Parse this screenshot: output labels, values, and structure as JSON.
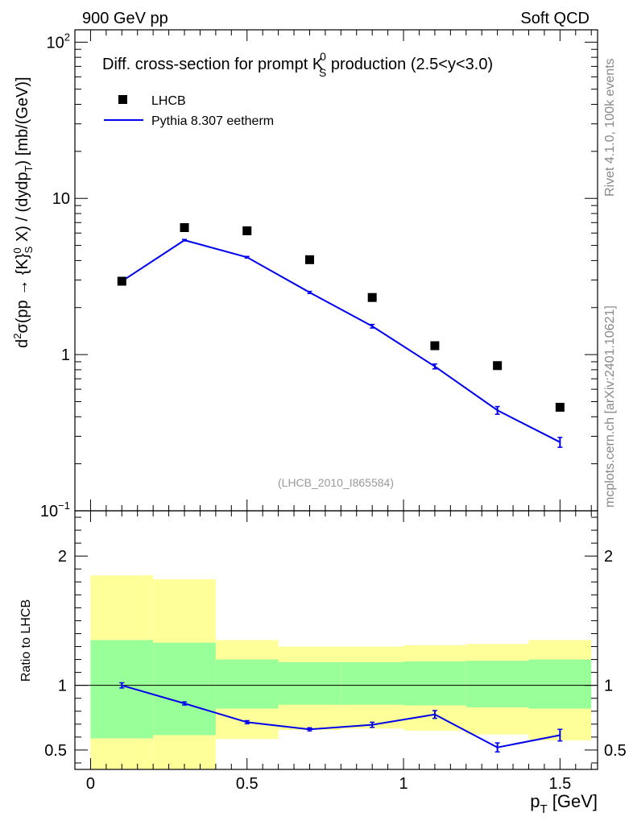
{
  "header": {
    "left_title": "900 GeV pp",
    "right_title": "Soft QCD"
  },
  "side": {
    "rivet_label": "Rivet 4.1.0,  100k events",
    "source_label": "mcplots.cern.ch [arXiv:2401.10621]"
  },
  "chart_data": {
    "type": "scatter",
    "title": "Diff. cross-section for prompt K0S production (2.5<y<3.0)",
    "title_parts": {
      "prefix": "Diff. cross-section for prompt K",
      "sup": "0",
      "sub": "S",
      "suffix": " production (2.5<y<3.0)"
    },
    "analysis_id": "(LHCB_2010_I865584)",
    "xlabel": "pT [GeV]",
    "ylabel": "d2σ(pp → {K}0S X) / (dydpT) [mb/(GeV)]",
    "xlim": [
      -0.05,
      1.62
    ],
    "ylim": [
      0.1,
      120
    ],
    "yscale": "log",
    "x_ticks": [
      "0",
      "0.5",
      "1",
      "1.5"
    ],
    "y_tick_values": [
      0.1,
      1,
      10,
      100
    ],
    "legend": [
      "LHCB",
      "Pythia 8.307 eetherm"
    ],
    "legend_position": "top-left",
    "x": [
      0.1,
      0.3,
      0.5,
      0.7,
      0.9,
      1.1,
      1.3,
      1.5
    ],
    "series": [
      {
        "name": "LHCB",
        "style": "markers",
        "color": "#000000",
        "values": [
          2.95,
          6.5,
          6.2,
          4.05,
          2.32,
          1.14,
          0.85,
          0.46
        ]
      },
      {
        "name": "Pythia 8.307 eetherm",
        "style": "line",
        "color": "#0000ee",
        "values": [
          2.95,
          5.4,
          4.2,
          2.5,
          1.52,
          0.84,
          0.44,
          0.275
        ],
        "errors": [
          0.04,
          0.06,
          0.05,
          0.04,
          0.04,
          0.03,
          0.025,
          0.02
        ]
      }
    ],
    "ratio": {
      "ylabel": "Ratio to LHCB",
      "ylim": [
        0.35,
        2.35
      ],
      "y_ticks": [
        "0.5",
        "1",
        "2"
      ],
      "y_tick_values": [
        0.5,
        1,
        2
      ],
      "values": [
        1.0,
        0.86,
        0.715,
        0.66,
        0.695,
        0.775,
        0.52,
        0.615
      ],
      "errors": [
        0.02,
        0.012,
        0.012,
        0.012,
        0.02,
        0.03,
        0.035,
        0.045
      ],
      "bands": [
        {
          "x0": 0.0,
          "x1": 0.2,
          "g_lo": 0.59,
          "g_hi": 1.35,
          "y_lo": 0.35,
          "y_hi": 1.85
        },
        {
          "x0": 0.2,
          "x1": 0.4,
          "g_lo": 0.615,
          "g_hi": 1.33,
          "y_lo": 0.35,
          "y_hi": 1.82
        },
        {
          "x0": 0.4,
          "x1": 0.6,
          "g_lo": 0.82,
          "g_hi": 1.2,
          "y_lo": 0.585,
          "y_hi": 1.35
        },
        {
          "x0": 0.6,
          "x1": 0.8,
          "g_lo": 0.85,
          "g_hi": 1.18,
          "y_lo": 0.655,
          "y_hi": 1.3
        },
        {
          "x0": 0.8,
          "x1": 1.0,
          "g_lo": 0.85,
          "g_hi": 1.18,
          "y_lo": 0.665,
          "y_hi": 1.3
        },
        {
          "x0": 1.0,
          "x1": 1.2,
          "g_lo": 0.845,
          "g_hi": 1.185,
          "y_lo": 0.65,
          "y_hi": 1.31
        },
        {
          "x0": 1.2,
          "x1": 1.4,
          "g_lo": 0.83,
          "g_hi": 1.19,
          "y_lo": 0.62,
          "y_hi": 1.32
        },
        {
          "x0": 1.4,
          "x1": 1.6,
          "g_lo": 0.82,
          "g_hi": 1.2,
          "y_lo": 0.575,
          "y_hi": 1.35
        }
      ],
      "band_colors": {
        "inner": "#99ff99",
        "outer": "#ffff99"
      }
    }
  }
}
